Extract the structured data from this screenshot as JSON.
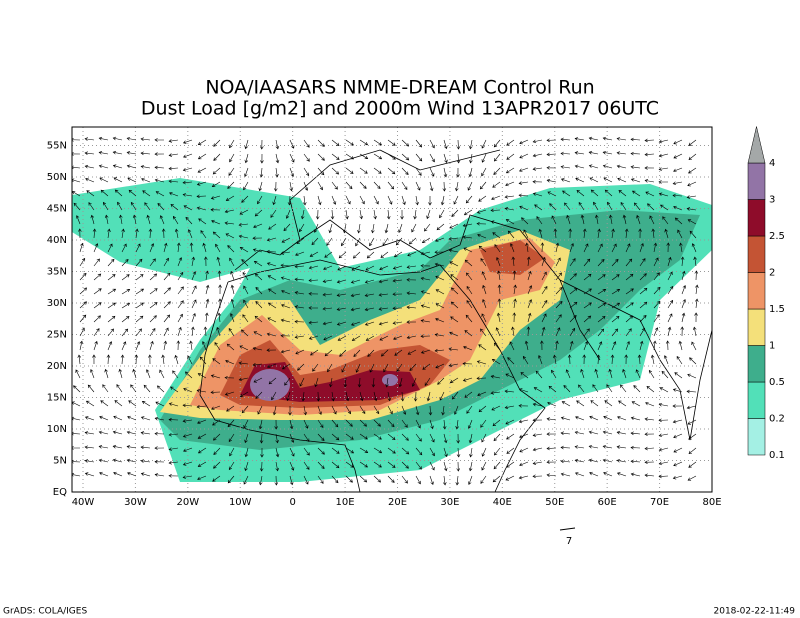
{
  "title": [
    "NOA/IAASARS NMME-DREAM Control Run",
    "Dust Load [g/m2] and 2000m Wind 13APR2017 06UTC"
  ],
  "map": {
    "lon_labels": [
      "40W",
      "30W",
      "20W",
      "10W",
      "0",
      "10E",
      "20E",
      "30E",
      "40E",
      "50E",
      "60E",
      "70E",
      "80E"
    ],
    "lat_labels": [
      "EQ",
      "5N",
      "10N",
      "15N",
      "20N",
      "25N",
      "30N",
      "35N",
      "40N",
      "45N",
      "50N",
      "55N"
    ]
  },
  "colorbar": {
    "levels": [
      0.1,
      0.2,
      0.5,
      1,
      1.5,
      2,
      2.5,
      3,
      4
    ],
    "colors": [
      "#a4f0e4",
      "#52e0b8",
      "#3eae8c",
      "#f4e07a",
      "#ee9466",
      "#c45434",
      "#8e0c2a",
      "#9274a6",
      "#a4a8a8"
    ]
  },
  "wind_reference": {
    "label": "7"
  },
  "footer": {
    "left": "GrADS: COLA/IGES",
    "right": "2018-02-22-11:49"
  }
}
